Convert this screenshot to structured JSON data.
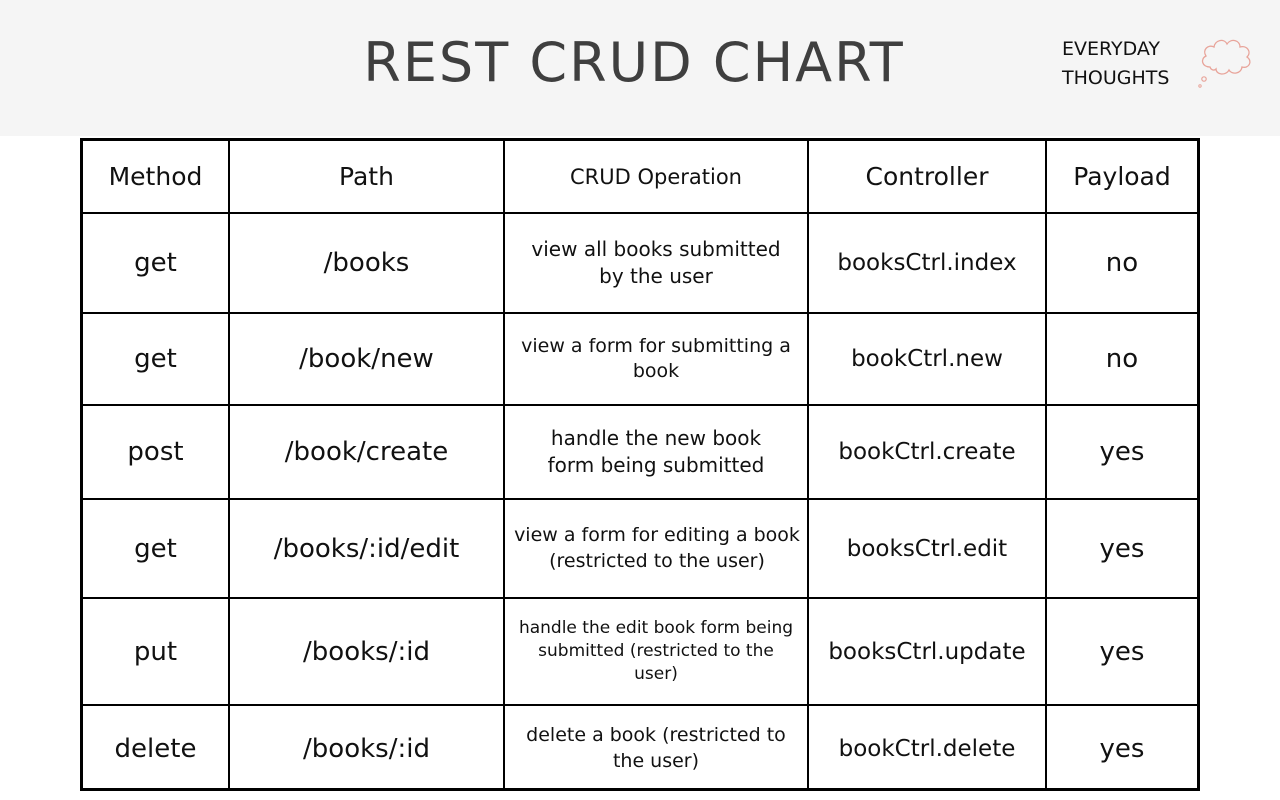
{
  "header": {
    "title": "REST CRUD CHART",
    "brand_line1": "EVERYDAY",
    "brand_line2": "THOUGHTS",
    "brand_accent_color": "#e8a49a"
  },
  "table": {
    "columns": [
      "Method",
      "Path",
      "CRUD Operation",
      "Controller",
      "Payload"
    ],
    "rows": [
      {
        "method": "get",
        "path": "/books",
        "operation": "view all books submitted by the user",
        "controller": "booksCtrl.index",
        "payload": "no"
      },
      {
        "method": "get",
        "path": "/book/new",
        "operation": "view a form for submitting a book",
        "controller": "bookCtrl.new",
        "payload": "no"
      },
      {
        "method": "post",
        "path": "/book/create",
        "operation": "handle the new book form being submitted",
        "controller": "bookCtrl.create",
        "payload": "yes"
      },
      {
        "method": "get",
        "path": "/books/:id/edit",
        "operation": "view a form for editing a book (restricted to the user)",
        "controller": "booksCtrl.edit",
        "payload": "yes"
      },
      {
        "method": "put",
        "path": "/books/:id",
        "operation": "handle the edit book form being submitted (restricted to the user)",
        "controller": "booksCtrl.update",
        "payload": "yes"
      },
      {
        "method": "delete",
        "path": "/books/:id",
        "operation": "delete a book (restricted to the user)",
        "controller": "bookCtrl.delete",
        "payload": "yes"
      }
    ]
  }
}
